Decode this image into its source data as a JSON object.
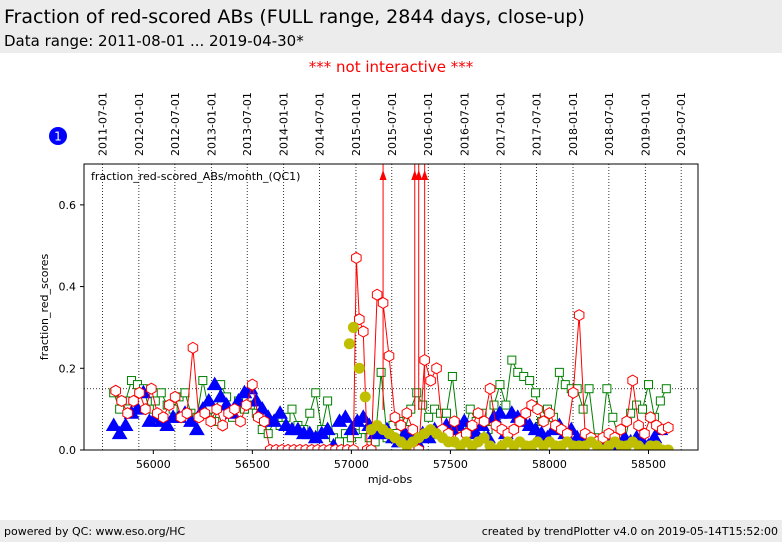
{
  "header": {
    "title": "Fraction of red-scored ABs (FULL range, 2844 days, close-up)",
    "subtitle": "Data range: 2011-08-01 ... 2019-04-30*"
  },
  "notice": "*** not interactive ***",
  "badge": "1",
  "footer": {
    "left": "powered by QC: www.eso.org/HC",
    "right": "created by trendPlotter v4.0 on 2019-05-14T15:52:00"
  },
  "colors": {
    "red": "#ff0000",
    "green": "#008000",
    "blue": "#0000ff",
    "olive": "#bfbf00",
    "badge": "#0000ff"
  },
  "chart_data": {
    "type": "scatter",
    "series_label": "fraction_red-scored_ABs/month_(QC1)",
    "xlabel": "mjd-obs",
    "ylabel": "fraction_red_scores",
    "xlim": [
      55650,
      58750
    ],
    "ylim": [
      0,
      0.7
    ],
    "x_ticks": [
      56000,
      56500,
      57000,
      57500,
      58000,
      58500
    ],
    "x_tick_labels": [
      "56000",
      "56500",
      "57000",
      "57500",
      "58000",
      "58500"
    ],
    "y_ticks": [
      0.0,
      0.2,
      0.4,
      0.6
    ],
    "y_tick_labels": [
      "0.0",
      "0.2",
      "0.4",
      "0.6"
    ],
    "threshold": 0.15,
    "date_ticks": [
      {
        "mjd": 55743,
        "label": "2011-07-01"
      },
      {
        "mjd": 55927,
        "label": "2012-01-01"
      },
      {
        "mjd": 56109,
        "label": "2012-07-01"
      },
      {
        "mjd": 56293,
        "label": "2013-01-01"
      },
      {
        "mjd": 56474,
        "label": "2013-07-01"
      },
      {
        "mjd": 56658,
        "label": "2014-01-01"
      },
      {
        "mjd": 56839,
        "label": "2014-07-01"
      },
      {
        "mjd": 57023,
        "label": "2015-01-01"
      },
      {
        "mjd": 57204,
        "label": "2015-07-01"
      },
      {
        "mjd": 57388,
        "label": "2016-01-01"
      },
      {
        "mjd": 57570,
        "label": "2016-07-01"
      },
      {
        "mjd": 57754,
        "label": "2017-01-01"
      },
      {
        "mjd": 57935,
        "label": "2017-07-01"
      },
      {
        "mjd": 58119,
        "label": "2018-01-01"
      },
      {
        "mjd": 58300,
        "label": "2018-07-01"
      },
      {
        "mjd": 58484,
        "label": "2019-01-01"
      },
      {
        "mjd": 58665,
        "label": "2019-07-01"
      }
    ],
    "series": [
      {
        "marker": "square",
        "color": "#008000",
        "x": [
          55800,
          55830,
          55860,
          55890,
          55920,
          55950,
          55980,
          56010,
          56040,
          56070,
          56100,
          56130,
          56160,
          56190,
          56220,
          56250,
          56280,
          56310,
          56340,
          56370,
          56400,
          56430,
          56460,
          56490,
          56520,
          56550,
          56580,
          56610,
          56640,
          56670,
          56700,
          56730,
          56760,
          56790,
          56820,
          56850,
          56880,
          56910,
          56940,
          56970,
          57000,
          57030,
          57060,
          57090,
          57120,
          57150,
          57180,
          57210,
          57240,
          57270,
          57300,
          57330,
          57360,
          57390,
          57420,
          57450,
          57480,
          57510,
          57540,
          57570,
          57600,
          57630,
          57660,
          57690,
          57720,
          57750,
          57780,
          57810,
          57840,
          57870,
          57900,
          57930,
          57960,
          57990,
          58020,
          58050,
          58080,
          58110,
          58140,
          58170,
          58200,
          58230,
          58260,
          58290,
          58320,
          58350,
          58380,
          58410,
          58440,
          58470,
          58500,
          58530,
          58560,
          58590
        ],
        "y": [
          0.14,
          0.1,
          0.12,
          0.17,
          0.16,
          0.15,
          0.1,
          0.12,
          0.14,
          0.11,
          0.1,
          0.13,
          0.14,
          0.09,
          0.08,
          0.17,
          0.1,
          0.07,
          0.16,
          0.13,
          0.08,
          0.12,
          0.1,
          0.11,
          0.09,
          0.05,
          0.04,
          0.07,
          0.06,
          0.08,
          0.1,
          0.06,
          0.05,
          0.09,
          0.14,
          0.05,
          0.12,
          0.03,
          0.02,
          0.04,
          0.03,
          0.04,
          0.05,
          0.03,
          0.02,
          0.19,
          0.03,
          0.06,
          0.07,
          0.05,
          0.1,
          0.14,
          0.11,
          0.08,
          0.1,
          0.09,
          0.09,
          0.18,
          0.05,
          0.04,
          0.1,
          0.07,
          0.09,
          0.05,
          0.11,
          0.16,
          0.11,
          0.22,
          0.19,
          0.18,
          0.17,
          0.14,
          0.07,
          0.1,
          0.08,
          0.19,
          0.16,
          0.15,
          0.15,
          0.1,
          0.15,
          0.03,
          0.02,
          0.15,
          0.08,
          0.03,
          0.02,
          0.09,
          0.11,
          0.1,
          0.16,
          0.08,
          0.12,
          0.15
        ]
      },
      {
        "marker": "hexagon",
        "color": "#ff0000",
        "x": [
          55810,
          55840,
          55870,
          55900,
          55930,
          55960,
          55990,
          56020,
          56050,
          56080,
          56110,
          56140,
          56170,
          56200,
          56230,
          56260,
          56290,
          56320,
          56350,
          56380,
          56410,
          56440,
          56470,
          56500,
          56530,
          56560,
          56590,
          56620,
          56650,
          56680,
          56710,
          56740,
          56770,
          56800,
          56830,
          56860,
          56890,
          56920,
          56950,
          56980,
          57010,
          57025,
          57040,
          57060,
          57080,
          57100,
          57130,
          57160,
          57190,
          57220,
          57250,
          57280,
          57310,
          57340,
          57370,
          57400,
          57430,
          57460,
          57490,
          57520,
          57550,
          57580,
          57610,
          57640,
          57670,
          57700,
          57730,
          57760,
          57790,
          57820,
          57850,
          57880,
          57910,
          57940,
          57970,
          58000,
          58030,
          58060,
          58090,
          58120,
          58150,
          58180,
          58210,
          58240,
          58270,
          58300,
          58330,
          58360,
          58390,
          58420,
          58450,
          58480,
          58510,
          58540,
          58570,
          58600
        ],
        "y": [
          0.145,
          0.12,
          0.09,
          0.12,
          0.14,
          0.1,
          0.15,
          0.09,
          0.08,
          0.11,
          0.13,
          0.08,
          0.09,
          0.25,
          0.08,
          0.09,
          0.07,
          0.1,
          0.06,
          0.09,
          0.1,
          0.07,
          0.11,
          0.16,
          0.08,
          0.07,
          0.0,
          0.0,
          0.0,
          0.0,
          0.0,
          0.0,
          0.0,
          0.0,
          0.0,
          0.0,
          0.0,
          0.0,
          0.0,
          0.0,
          0.0,
          0.47,
          0.32,
          0.29,
          0.0,
          0.0,
          0.38,
          0.36,
          0.23,
          0.08,
          0.06,
          0.09,
          0.05,
          0.0,
          0.22,
          0.17,
          0.2,
          0.05,
          0.04,
          0.07,
          0.03,
          0.04,
          0.06,
          0.09,
          0.07,
          0.15,
          0.06,
          0.05,
          0.04,
          0.05,
          0.07,
          0.09,
          0.11,
          0.1,
          0.07,
          0.09,
          0.06,
          0.05,
          0.04,
          0.14,
          0.33,
          0.04,
          0.03,
          0.02,
          0.03,
          0.04,
          0.03,
          0.05,
          0.07,
          0.17,
          0.06,
          0.04,
          0.08,
          0.06,
          0.05,
          0.055
        ]
      },
      {
        "marker": "triangle",
        "color": "#0000ff",
        "x": [
          55800,
          55830,
          55860,
          55890,
          55920,
          55950,
          55980,
          56010,
          56040,
          56070,
          56100,
          56130,
          56160,
          56190,
          56220,
          56250,
          56280,
          56310,
          56340,
          56370,
          56400,
          56430,
          56460,
          56490,
          56520,
          56550,
          56580,
          56610,
          56640,
          56670,
          56700,
          56730,
          56760,
          56790,
          56820,
          56850,
          56880,
          56910,
          56940,
          56970,
          57000,
          57030,
          57060,
          57090,
          57120,
          57150,
          57180,
          57210,
          57240,
          57270,
          57300,
          57330,
          57360,
          57390,
          57420,
          57450,
          57480,
          57510,
          57540,
          57570,
          57600,
          57630,
          57660,
          57690,
          57720,
          57750,
          57780,
          57810,
          57840,
          57870,
          57900,
          57930,
          57960,
          57990,
          58020,
          58050,
          58080,
          58110,
          58140,
          58170,
          58200,
          58230,
          58260,
          58290,
          58320,
          58350,
          58380,
          58410,
          58440,
          58470,
          58500,
          58530,
          58560
        ],
        "y": [
          0.06,
          0.04,
          0.06,
          0.09,
          0.1,
          0.14,
          0.07,
          0.08,
          0.07,
          0.06,
          0.08,
          0.08,
          0.09,
          0.07,
          0.05,
          0.1,
          0.12,
          0.16,
          0.13,
          0.11,
          0.09,
          0.12,
          0.14,
          0.15,
          0.12,
          0.1,
          0.08,
          0.07,
          0.09,
          0.06,
          0.05,
          0.05,
          0.04,
          0.04,
          0.03,
          0.04,
          0.05,
          0.01,
          0.07,
          0.08,
          0.05,
          0.07,
          0.08,
          0.06,
          0.04,
          0.04,
          0.05,
          0.03,
          0.02,
          0.04,
          0.03,
          0.02,
          0.04,
          0.03,
          0.05,
          0.04,
          0.06,
          0.05,
          0.06,
          0.07,
          0.05,
          0.04,
          0.06,
          0.03,
          0.08,
          0.09,
          0.04,
          0.09,
          0.08,
          0.07,
          0.06,
          0.05,
          0.04,
          0.03,
          0.05,
          0.06,
          0.04,
          0.05,
          0.03,
          0.02,
          0.03,
          0.02,
          0.02,
          0.02,
          0.02,
          0.01,
          0.03,
          0.02,
          0.03,
          0.02,
          0.01,
          0.03,
          0.05
        ]
      },
      {
        "marker": "circle",
        "color": "#bfbf00",
        "x": [
          56990,
          57010,
          57040,
          57070,
          57100,
          57130,
          57160,
          57190,
          57220,
          57250,
          57280,
          57310,
          57340,
          57370,
          57400,
          57430,
          57460,
          57490,
          57520,
          57550,
          57580,
          57610,
          57640,
          57670,
          57700,
          57730,
          57760,
          57790,
          57820,
          57850,
          57880,
          57910,
          57940,
          57970,
          58000,
          58030,
          58060,
          58090,
          58120,
          58150,
          58180,
          58210,
          58240,
          58270,
          58300,
          58330,
          58360,
          58390,
          58420,
          58450,
          58480,
          58510,
          58540,
          58570,
          58600
        ],
        "y": [
          0.26,
          0.3,
          0.2,
          0.13,
          0.05,
          0.06,
          0.05,
          0.04,
          0.03,
          0.02,
          0.01,
          0.02,
          0.03,
          0.04,
          0.05,
          0.04,
          0.03,
          0.02,
          0.02,
          0.01,
          0.02,
          0.01,
          0.02,
          0.03,
          0.01,
          0.0,
          0.01,
          0.02,
          0.01,
          0.02,
          0.01,
          0.01,
          0.02,
          0.01,
          0.02,
          0.01,
          0.01,
          0.02,
          0.01,
          0.01,
          0.01,
          0.02,
          0.01,
          0.0,
          0.01,
          0.02,
          0.01,
          0.01,
          0.02,
          0.01,
          0.0,
          0.01,
          0.01,
          0.0,
          0.0
        ]
      }
    ],
    "offscale_arrows": [
      57160,
      57320,
      57340,
      57370
    ]
  }
}
